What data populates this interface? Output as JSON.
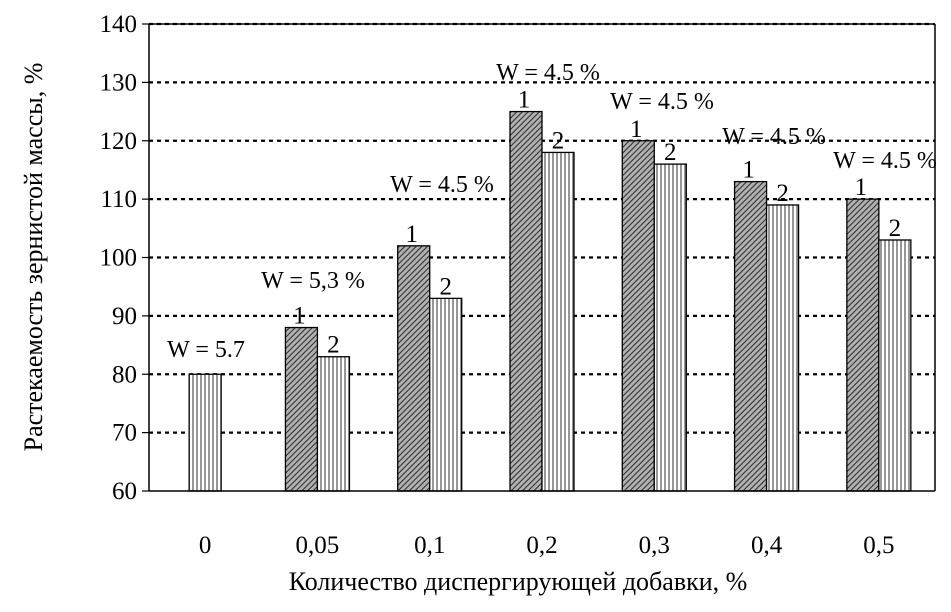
{
  "chart_data": {
    "type": "bar",
    "title": "",
    "xlabel": "Количество диспергирующей  добавки, %",
    "ylabel": "Растекаемость зернистой массы, %",
    "ylim": [
      60,
      140
    ],
    "yticks": [
      60,
      70,
      80,
      90,
      100,
      110,
      120,
      130,
      140
    ],
    "grid": true,
    "categories": [
      "0",
      "0,05",
      "0,1",
      "0,2",
      "0,3",
      "0,4",
      "0,5"
    ],
    "series": [
      {
        "name": "1",
        "values": [
          null,
          88,
          102,
          125,
          120,
          113,
          110
        ],
        "color": "#808080"
      },
      {
        "name": "2",
        "values": [
          80,
          83,
          93,
          118,
          116,
          109,
          103
        ],
        "color": "#d9d9d9"
      }
    ],
    "annotations": [
      "W = 5.7",
      "W = 5,3 %",
      "W = 4.5 %",
      "W = 4.5 %",
      "W = 4.5 %",
      "W = 4.5 %",
      "W = 4.5 %"
    ]
  }
}
